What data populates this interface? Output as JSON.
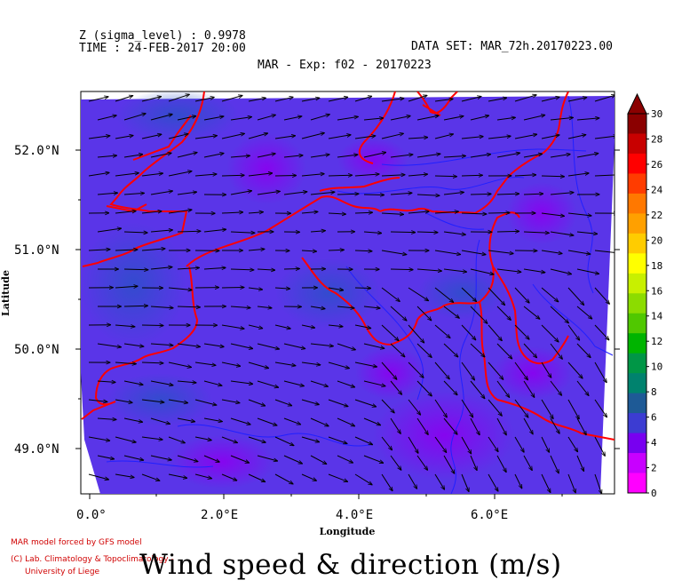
{
  "header": {
    "z_level": "Z (sigma_level) : 0.9978",
    "time": "TIME : 24-FEB-2017 20:00",
    "dataset": "DATA SET: MAR_72h.20170223.00",
    "subtitle": "MAR - Exp: f02 - 20170223"
  },
  "axes": {
    "x_title": "Longitude",
    "y_title": "Latitude",
    "x_ticks": [
      "0.0°",
      "2.0°E",
      "4.0°E",
      "6.0°E"
    ],
    "y_ticks": [
      "52.0°N",
      "51.0°N",
      "50.0°N",
      "49.0°N"
    ]
  },
  "colorbar": {
    "labels": [
      "30",
      "28",
      "26",
      "24",
      "22",
      "20",
      "18",
      "16",
      "14",
      "12",
      "10",
      "8",
      "6",
      "4",
      "2",
      "0"
    ],
    "colors": [
      "#8b0000",
      "#c80000",
      "#ff0000",
      "#ff3c00",
      "#ff7800",
      "#ffa000",
      "#ffcc00",
      "#ffff00",
      "#c8f000",
      "#8cdc00",
      "#50c800",
      "#00b400",
      "#009646",
      "#00826e",
      "#1e5a96",
      "#3c3cd2",
      "#7800f0",
      "#c800ff",
      "#ff00ff"
    ]
  },
  "map": {
    "field": "wind speed (m/s)",
    "dominant_speed_range": "2-5",
    "wind_direction": "westerly, veering to north-westerly in the south-east",
    "lines": {
      "country_borders": "#ff0000",
      "rivers": "#2020ff"
    }
  },
  "credits": {
    "line1": "MAR model forced by GFS model",
    "line2": "(C) Lab. Climatology & Topoclimatology -",
    "line3": "University of Liege"
  },
  "title": "Wind speed & direction (m/s)"
}
